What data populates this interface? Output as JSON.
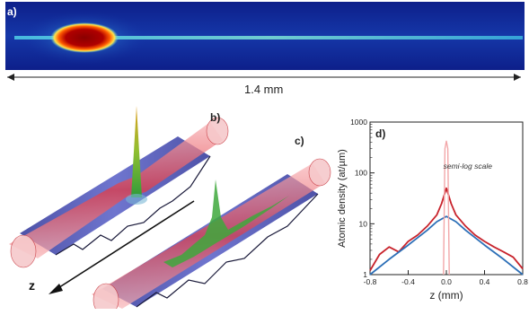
{
  "panels": {
    "a": {
      "label": "a)"
    },
    "b": {
      "label": "b)"
    },
    "c": {
      "label": "c)"
    },
    "d": {
      "label": "d)"
    }
  },
  "scale_bar": {
    "label": "1.4 mm"
  },
  "axis_z_label": "z",
  "chart_data": {
    "type": "line",
    "xlabel": "z (mm)",
    "ylabel": "Atomic density (at/µm)",
    "annotation": "semi-log scale",
    "y_scale": "log",
    "xlim": [
      -0.8,
      0.8
    ],
    "ylim": [
      1,
      1000
    ],
    "x_ticks": [
      "-0.8",
      "-0.4",
      "0.0",
      "0.4",
      "0.8"
    ],
    "y_ticks": [
      "1",
      "10",
      "100",
      "1000"
    ],
    "series": [
      {
        "color": "#c8232c",
        "x": [
          -0.8,
          -0.7,
          -0.6,
          -0.5,
          -0.4,
          -0.3,
          -0.2,
          -0.1,
          -0.05,
          0.0,
          0.05,
          0.1,
          0.2,
          0.3,
          0.4,
          0.5,
          0.6,
          0.7,
          0.8
        ],
        "y": [
          1.2,
          2.5,
          3.5,
          2.8,
          4.5,
          6,
          9,
          15,
          25,
          50,
          25,
          15,
          9,
          6,
          4.5,
          3.5,
          2.8,
          2.2,
          1.3
        ]
      },
      {
        "color": "#2c6fb7",
        "x": [
          -0.8,
          -0.6,
          -0.4,
          -0.2,
          -0.1,
          0.0,
          0.1,
          0.2,
          0.4,
          0.6,
          0.8
        ],
        "y": [
          1.0,
          2.0,
          3.8,
          7.5,
          11,
          14,
          11,
          7.5,
          3.8,
          2.0,
          1.0
        ]
      },
      {
        "color": "#f2a7a9",
        "x": [
          -0.03,
          -0.015,
          0.0,
          0.015,
          0.03
        ],
        "y": [
          1,
          300,
          420,
          300,
          1
        ]
      }
    ]
  }
}
